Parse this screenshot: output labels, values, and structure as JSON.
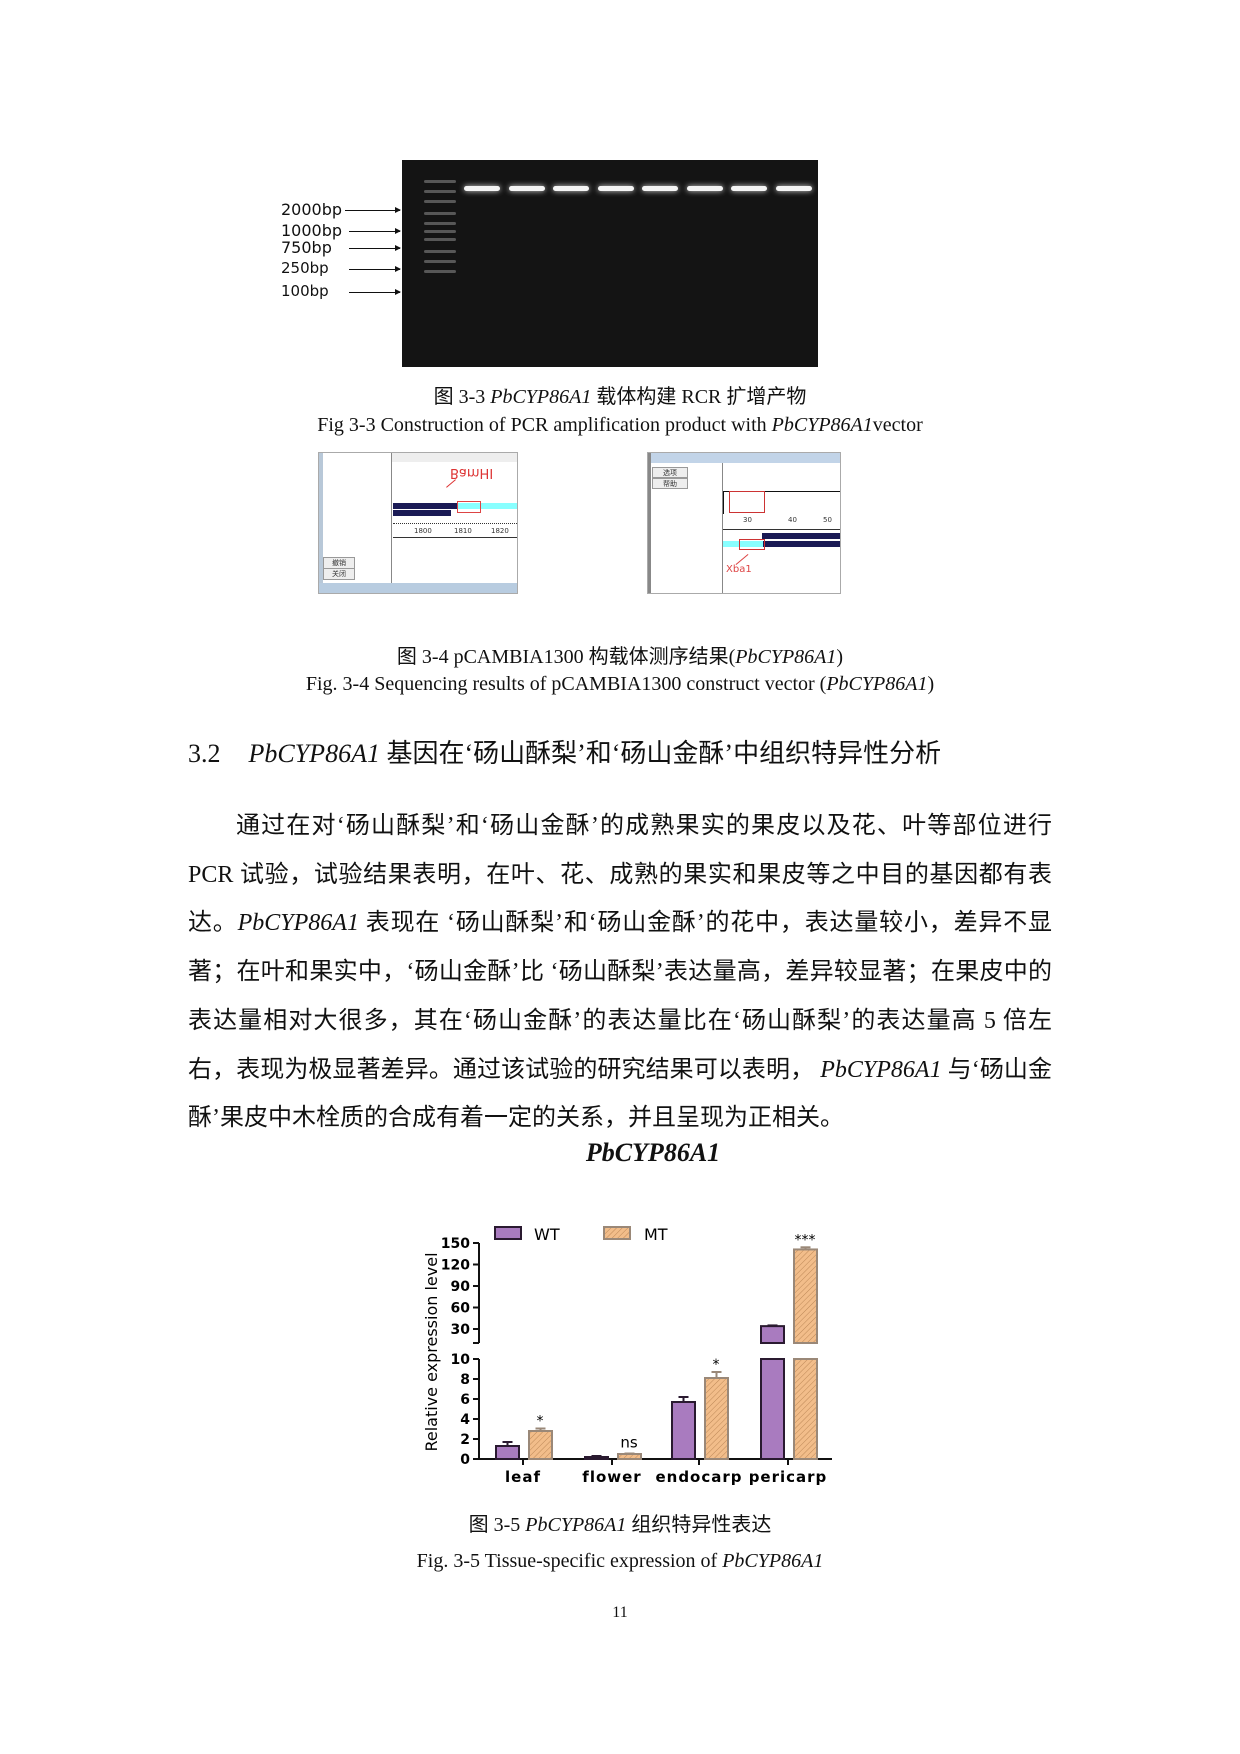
{
  "fig33": {
    "ladder_labels": [
      "2000bp",
      "1000bp",
      "750bp",
      "250bp",
      "100bp"
    ],
    "caption_cn": {
      "prefix": "图  3-3 ",
      "gene": "PbCYP86A1",
      "suffix": " 载体构建 RCR 扩增产物"
    },
    "caption_en": {
      "prefix": "Fig 3-3 Construction of PCR amplification product with ",
      "gene": "PbCYP86A1",
      "suffix": "vector"
    }
  },
  "fig34": {
    "left_shot": {
      "site_label": "BamHI",
      "ruler": [
        "1800",
        "1810",
        "1820"
      ],
      "buttons": [
        "撤销",
        "关闭"
      ]
    },
    "right_shot": {
      "site_label": "Xba1",
      "ruler": [
        "30",
        "40",
        "50"
      ],
      "buttons": [
        "选项",
        "帮助"
      ]
    },
    "caption_cn": {
      "prefix": "图  3-4 pCAMBIA1300  构载体测序结果(",
      "gene": "PbCYP86A1",
      "suffix": ")"
    },
    "caption_en": {
      "prefix": "Fig. 3-4 Sequencing results of pCAMBIA1300 construct vector (",
      "gene": "PbCYP86A1",
      "suffix": ")"
    }
  },
  "section": {
    "number": "3.2",
    "gene": "PbCYP86A1",
    "title": " 基因在‘砀山酥梨’和‘砀山金酥’中组织特异性分析"
  },
  "paragraph": {
    "p1": "通过在对‘砀山酥梨’和‘砀山金酥’的成熟果实的果皮以及花、叶等部位进行PCR 试验，试验结果表明，在叶、花、成熟的果实和果皮等之中目的基因都有表达。",
    "gene1": "PbCYP86A1",
    "p2": " 表现在 ‘砀山酥梨’和‘砀山金酥’的花中，表达量较小，差异不显著；在叶和果实中，‘砀山金酥’比 ‘砀山酥梨’表达量高，差异较显著；在果皮中的表达量相对大很多，其在‘砀山金酥’的表达量比在‘砀山酥梨’的表达量高 5 倍左右，表现为极显著差异。通过该试验的研究结果可以表明， ",
    "gene2": "PbCYP86A1",
    "p3": " 与‘砀山金酥’果皮中木栓质的合成有着一定的关系，并且呈现为正相关。"
  },
  "chart_data": {
    "type": "bar",
    "title": "PbCYP86A1",
    "ylabel": "Relative expression level",
    "xlabel": "",
    "categories": [
      "leaf",
      "flower",
      "endocarp",
      "pericarp"
    ],
    "series": [
      {
        "name": "WT",
        "values": [
          1.3,
          0.2,
          5.7,
          34
        ],
        "errors": [
          0.4,
          0.1,
          0.5,
          1
        ],
        "color": "#a97bbf"
      },
      {
        "name": "MT",
        "values": [
          2.8,
          0.5,
          8.1,
          141
        ],
        "errors": [
          0.25,
          0.05,
          0.6,
          3
        ],
        "color": "#f2bd8a"
      }
    ],
    "significance": [
      "*",
      "ns",
      "*",
      "***"
    ],
    "y_broken_axis": {
      "lower": [
        0,
        10
      ],
      "upper": [
        11,
        150
      ]
    },
    "yticks_lower": [
      "0",
      "2",
      "4",
      "6",
      "8",
      "10"
    ],
    "yticks_upper": [
      "30",
      "60",
      "90",
      "120",
      "150"
    ],
    "legend": "top",
    "grid": false
  },
  "fig35": {
    "caption_cn": {
      "prefix": "图  3-5 ",
      "gene": "PbCYP86A1",
      "suffix": "  组织特异性表达"
    },
    "caption_en": {
      "prefix": "Fig. 3-5 Tissue-specific expression of ",
      "gene": "PbCYP86A1",
      "suffix": ""
    }
  },
  "page_number": "11"
}
